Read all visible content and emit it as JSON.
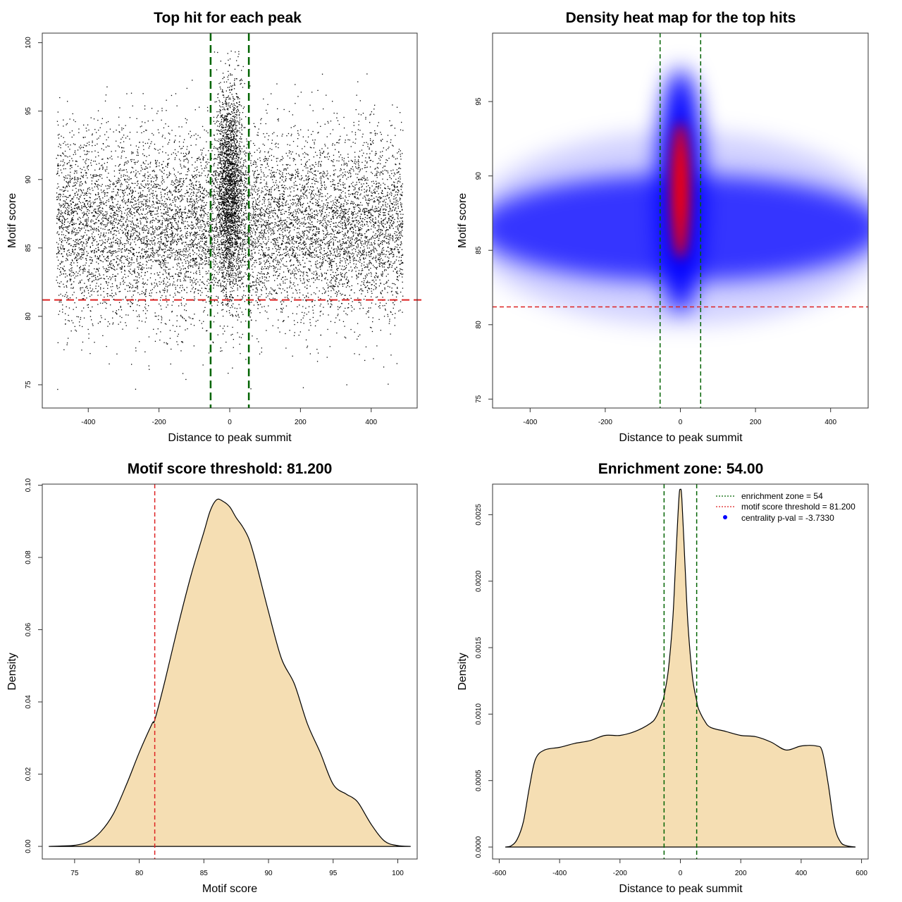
{
  "chart_data": [
    {
      "id": "scatter",
      "type": "scatter",
      "title": "Top hit for each peak",
      "xlabel": "Distance to peak summit",
      "ylabel": "Motif score",
      "xlim": [
        -530,
        530
      ],
      "ylim": [
        73.3,
        100.7
      ],
      "xticks": [
        -400,
        -200,
        0,
        200,
        400
      ],
      "yticks": [
        75,
        80,
        85,
        90,
        95,
        100
      ],
      "xtick_labels": [
        "-400",
        "-200",
        "0",
        "200",
        "400"
      ],
      "ytick_labels": [
        "75",
        "80",
        "85",
        "90",
        "95",
        "100"
      ],
      "vlines": [
        -54,
        54
      ],
      "hline": 81.2,
      "point_count": 12000,
      "background_score_mean": 86.6,
      "background_score_sd": 3.4,
      "central_score_mean": 89.5,
      "central_score_sd": 3.8,
      "central_fraction": 0.19,
      "score_max": 99.6,
      "line_colors": {
        "zone": "#006400",
        "threshold": "#dd2222"
      }
    },
    {
      "id": "heatmap",
      "type": "heatmap",
      "title": "Density heat map for the top hits",
      "xlabel": "Distance to peak summit",
      "ylabel": "Motif score",
      "xlim": [
        -500,
        500
      ],
      "ylim": [
        74.4,
        99.6
      ],
      "xticks": [
        -400,
        -200,
        0,
        200,
        400
      ],
      "yticks": [
        75,
        80,
        85,
        90,
        95
      ],
      "xtick_labels": [
        "-400",
        "-200",
        "0",
        "200",
        "400"
      ],
      "ytick_labels": [
        "75",
        "80",
        "85",
        "90",
        "95"
      ],
      "vlines": [
        -54,
        54
      ],
      "hline": 81.2,
      "central_peak_score": 89,
      "background_band_score": 86.5,
      "colors": {
        "low": "#ffffff",
        "mid": "#0000ff",
        "high": "#ff0000",
        "zone": "#006400",
        "threshold": "#dd2222"
      }
    },
    {
      "id": "score-density",
      "type": "area",
      "title": "Motif score threshold: 81.200",
      "xlabel": "Motif score",
      "ylabel": "Density",
      "xlim": [
        72.5,
        101.5
      ],
      "ylim": [
        -0.0035,
        0.1003
      ],
      "xticks": [
        75,
        80,
        85,
        90,
        95,
        100
      ],
      "yticks": [
        0.0,
        0.02,
        0.04,
        0.06,
        0.08,
        0.1
      ],
      "xtick_labels": [
        "75",
        "80",
        "85",
        "90",
        "95",
        "100"
      ],
      "ytick_labels": [
        "0.00",
        "0.02",
        "0.04",
        "0.06",
        "0.08",
        "0.10"
      ],
      "x": [
        73,
        74,
        75,
        76,
        77,
        78,
        79,
        80,
        81,
        81.2,
        82,
        83,
        84,
        85,
        85.5,
        86,
        86.5,
        87,
        87.5,
        88,
        88.5,
        89,
        90,
        91,
        92,
        93,
        94,
        95,
        96,
        96.5,
        97,
        98,
        99,
        100,
        101
      ],
      "y": [
        0.0,
        0.0001,
        0.0003,
        0.0012,
        0.004,
        0.009,
        0.017,
        0.026,
        0.034,
        0.035,
        0.046,
        0.061,
        0.075,
        0.087,
        0.093,
        0.096,
        0.0955,
        0.094,
        0.091,
        0.0885,
        0.085,
        0.079,
        0.065,
        0.052,
        0.045,
        0.034,
        0.026,
        0.0172,
        0.0145,
        0.0135,
        0.0118,
        0.0058,
        0.0014,
        0.0002,
        0.0
      ],
      "vline": 81.2,
      "fill_color": "#f5deb3",
      "line_color": "#dd2222"
    },
    {
      "id": "distance-density",
      "type": "area",
      "title": "Enrichment zone: 54.00",
      "xlabel": "Distance to peak summit",
      "ylabel": "Density",
      "xlim": [
        -622,
        622
      ],
      "ylim": [
        -9e-05,
        0.00273
      ],
      "xticks": [
        -600,
        -400,
        -200,
        0,
        200,
        400,
        600
      ],
      "yticks": [
        0.0,
        0.0005,
        0.001,
        0.0015,
        0.002,
        0.0025
      ],
      "xtick_labels": [
        "-600",
        "-400",
        "-200",
        "0",
        "200",
        "400",
        "600"
      ],
      "ytick_labels": [
        "0.0000",
        "0.0005",
        "0.0010",
        "0.0015",
        "0.0020",
        "0.0025"
      ],
      "x": [
        -580,
        -560,
        -540,
        -520,
        -500,
        -480,
        -450,
        -400,
        -350,
        -300,
        -250,
        -200,
        -150,
        -100,
        -80,
        -60,
        -54,
        -40,
        -25,
        -15,
        -5,
        0,
        5,
        15,
        25,
        40,
        54,
        60,
        80,
        100,
        150,
        200,
        250,
        300,
        350,
        400,
        450,
        470,
        490,
        510,
        530,
        550,
        580
      ],
      "y": [
        0.0,
        1e-05,
        6e-05,
        0.00019,
        0.00045,
        0.00066,
        0.00073,
        0.00075,
        0.00078,
        0.0008,
        0.00084,
        0.00084,
        0.00087,
        0.00093,
        0.00098,
        0.00109,
        0.00114,
        0.00133,
        0.00172,
        0.00218,
        0.00262,
        0.00269,
        0.00262,
        0.00214,
        0.00168,
        0.00128,
        0.0011,
        0.00104,
        0.00095,
        0.0009,
        0.00087,
        0.00084,
        0.00083,
        0.00079,
        0.00073,
        0.00076,
        0.00076,
        0.00072,
        0.00047,
        0.00016,
        4e-05,
        1e-05,
        0.0
      ],
      "vlines": [
        -54,
        54
      ],
      "fill_color": "#f5deb3",
      "line_color": "#006400",
      "legend": [
        {
          "label": "enrichment zone = 54",
          "color": "#006400",
          "marker": "line"
        },
        {
          "label": "motif score threshold = 81.200",
          "color": "#dd2222",
          "marker": "line"
        },
        {
          "label": "centrality p-val = -3.7330",
          "color": "#0000ff",
          "marker": "dot"
        }
      ]
    }
  ]
}
